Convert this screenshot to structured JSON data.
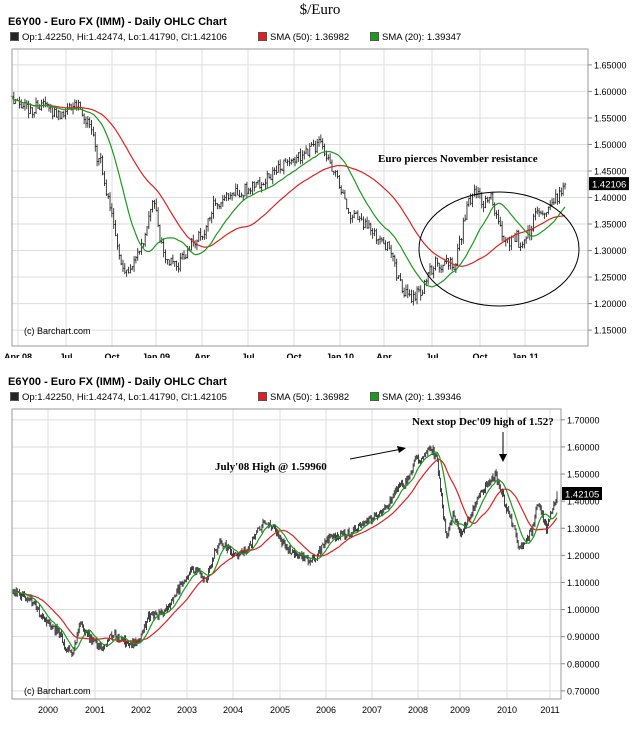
{
  "page_title": "$/Euro",
  "chart_data": [
    {
      "type": "ohlc",
      "title": "E6Y00 - Euro FX (IMM) - Daily OHLC Chart",
      "legend": {
        "ohlc": "Op:1.42250, Hi:1.42474, Lo:1.41790, Cl:1.42106",
        "sma50": "SMA (50): 1.36982",
        "sma20": "SMA (20): 1.39347"
      },
      "last_price_label": "1.42106",
      "credit": "(c) Barchart.com",
      "x_ticks": [
        "Apr 08",
        "Jul",
        "Oct",
        "Jan 09",
        "Apr",
        "Jul",
        "Oct",
        "Jan 10",
        "Apr",
        "Jul",
        "Oct",
        "Jan 11"
      ],
      "y_ticks": [
        "1.65000",
        "1.60000",
        "1.55000",
        "1.50000",
        "1.45000",
        "1.40000",
        "1.35000",
        "1.30000",
        "1.25000",
        "1.20000",
        "1.15000"
      ],
      "ylim": [
        1.12,
        1.68
      ],
      "grid": true,
      "series": [
        {
          "name": "SMA (50)",
          "color": "#e02020"
        },
        {
          "name": "SMA (20)",
          "color": "#1c9a1c"
        }
      ],
      "price_path": [
        [
          0,
          1.58
        ],
        [
          2,
          1.575
        ],
        [
          3,
          1.565
        ],
        [
          5,
          1.575
        ],
        [
          7,
          1.555
        ],
        [
          9,
          1.562
        ],
        [
          10,
          1.575
        ],
        [
          11,
          1.57
        ],
        [
          12,
          1.55
        ],
        [
          13,
          1.525
        ],
        [
          14,
          1.46
        ],
        [
          14.5,
          1.47
        ],
        [
          15,
          1.43
        ],
        [
          16,
          1.38
        ],
        [
          17,
          1.32
        ],
        [
          17.5,
          1.29
        ],
        [
          18,
          1.27
        ],
        [
          19,
          1.26
        ],
        [
          20,
          1.29
        ],
        [
          21,
          1.3
        ],
        [
          22,
          1.35
        ],
        [
          23,
          1.4
        ],
        [
          24,
          1.33
        ],
        [
          25,
          1.29
        ],
        [
          26,
          1.28
        ],
        [
          27,
          1.27
        ],
        [
          29,
          1.31
        ],
        [
          31,
          1.33
        ],
        [
          33,
          1.39
        ],
        [
          35,
          1.4
        ],
        [
          37,
          1.41
        ],
        [
          39,
          1.42
        ],
        [
          41,
          1.43
        ],
        [
          43,
          1.45
        ],
        [
          45,
          1.47
        ],
        [
          47,
          1.48
        ],
        [
          49,
          1.495
        ],
        [
          50,
          1.5
        ],
        [
          51,
          1.485
        ],
        [
          52,
          1.46
        ],
        [
          53,
          1.44
        ],
        [
          54,
          1.4
        ],
        [
          55,
          1.37
        ],
        [
          56,
          1.36
        ],
        [
          57,
          1.355
        ],
        [
          58,
          1.345
        ],
        [
          59,
          1.33
        ],
        [
          60,
          1.32
        ],
        [
          61,
          1.31
        ],
        [
          62,
          1.28
        ],
        [
          63,
          1.24
        ],
        [
          64,
          1.22
        ],
        [
          65,
          1.21
        ],
        [
          66,
          1.22
        ],
        [
          67,
          1.23
        ],
        [
          68,
          1.26
        ],
        [
          69,
          1.28
        ],
        [
          70,
          1.27
        ],
        [
          71,
          1.28
        ],
        [
          72,
          1.27
        ],
        [
          73,
          1.32
        ],
        [
          74,
          1.38
        ],
        [
          75,
          1.41
        ],
        [
          76,
          1.4
        ],
        [
          77,
          1.39
        ],
        [
          78,
          1.4
        ],
        [
          79,
          1.36
        ],
        [
          80,
          1.32
        ],
        [
          81,
          1.31
        ],
        [
          82,
          1.33
        ],
        [
          83,
          1.3
        ],
        [
          84,
          1.33
        ],
        [
          85,
          1.36
        ],
        [
          86,
          1.37
        ],
        [
          87,
          1.38
        ],
        [
          88,
          1.395
        ],
        [
          89,
          1.4
        ],
        [
          90,
          1.42
        ]
      ],
      "annotations": [
        {
          "text": "Euro pierces November resistance"
        }
      ]
    },
    {
      "type": "ohlc",
      "title": "E6Y00 - Euro FX (IMM) - Daily OHLC Chart",
      "legend": {
        "ohlc": "Op:1.42250, Hi:1.42474, Lo:1.41790, Cl:1.42105",
        "sma50": "SMA (50): 1.36982",
        "sma20": "SMA (20): 1.39346"
      },
      "last_price_label": "1.42105",
      "credit": "(c) Barchart.com",
      "x_ticks": [
        "2000",
        "2001",
        "2002",
        "2003",
        "2004",
        "2005",
        "2006",
        "2007",
        "2008",
        "2009",
        "2010",
        "2011"
      ],
      "y_ticks": [
        "1.70000",
        "1.60000",
        "1.50000",
        "1.40000",
        "1.30000",
        "1.20000",
        "1.10000",
        "1.00000",
        "0.90000",
        "0.80000",
        "0.70000"
      ],
      "ylim": [
        0.67,
        1.74
      ],
      "grid": true,
      "series": [
        {
          "name": "SMA (50)",
          "color": "#e02020"
        },
        {
          "name": "SMA (20)",
          "color": "#1c9a1c"
        }
      ],
      "price_path": [
        [
          1999.55,
          1.07
        ],
        [
          1999.8,
          1.05
        ],
        [
          2000.0,
          1.03
        ],
        [
          2000.2,
          0.97
        ],
        [
          2000.4,
          0.93
        ],
        [
          2000.55,
          0.92
        ],
        [
          2000.7,
          0.86
        ],
        [
          2000.85,
          0.84
        ],
        [
          2001.0,
          0.94
        ],
        [
          2001.1,
          0.92
        ],
        [
          2001.3,
          0.88
        ],
        [
          2001.5,
          0.86
        ],
        [
          2001.7,
          0.91
        ],
        [
          2001.9,
          0.89
        ],
        [
          2002.1,
          0.87
        ],
        [
          2002.3,
          0.9
        ],
        [
          2002.5,
          0.98
        ],
        [
          2002.7,
          0.98
        ],
        [
          2002.9,
          1.01
        ],
        [
          2003.1,
          1.07
        ],
        [
          2003.3,
          1.13
        ],
        [
          2003.5,
          1.15
        ],
        [
          2003.7,
          1.1
        ],
        [
          2003.9,
          1.22
        ],
        [
          2004.05,
          1.25
        ],
        [
          2004.3,
          1.2
        ],
        [
          2004.6,
          1.22
        ],
        [
          2004.85,
          1.3
        ],
        [
          2005.0,
          1.33
        ],
        [
          2005.2,
          1.29
        ],
        [
          2005.45,
          1.22
        ],
        [
          2005.7,
          1.2
        ],
        [
          2005.9,
          1.18
        ],
        [
          2006.1,
          1.2
        ],
        [
          2006.3,
          1.26
        ],
        [
          2006.5,
          1.27
        ],
        [
          2006.8,
          1.28
        ],
        [
          2007.0,
          1.31
        ],
        [
          2007.3,
          1.34
        ],
        [
          2007.55,
          1.37
        ],
        [
          2007.8,
          1.45
        ],
        [
          2008.0,
          1.47
        ],
        [
          2008.2,
          1.55
        ],
        [
          2008.4,
          1.57
        ],
        [
          2008.55,
          1.59
        ],
        [
          2008.65,
          1.55
        ],
        [
          2008.75,
          1.4
        ],
        [
          2008.85,
          1.27
        ],
        [
          2009.0,
          1.35
        ],
        [
          2009.15,
          1.28
        ],
        [
          2009.3,
          1.32
        ],
        [
          2009.5,
          1.4
        ],
        [
          2009.7,
          1.46
        ],
        [
          2009.9,
          1.5
        ],
        [
          2010.0,
          1.45
        ],
        [
          2010.15,
          1.37
        ],
        [
          2010.3,
          1.3
        ],
        [
          2010.42,
          1.22
        ],
        [
          2010.55,
          1.25
        ],
        [
          2010.7,
          1.3
        ],
        [
          2010.8,
          1.39
        ],
        [
          2010.9,
          1.35
        ],
        [
          2011.0,
          1.3
        ],
        [
          2011.1,
          1.36
        ],
        [
          2011.22,
          1.42
        ]
      ],
      "annotations": [
        {
          "text": "July'08 High @ 1.59960"
        },
        {
          "text": "Next stop Dec'09 high of 1.52?"
        }
      ]
    }
  ]
}
